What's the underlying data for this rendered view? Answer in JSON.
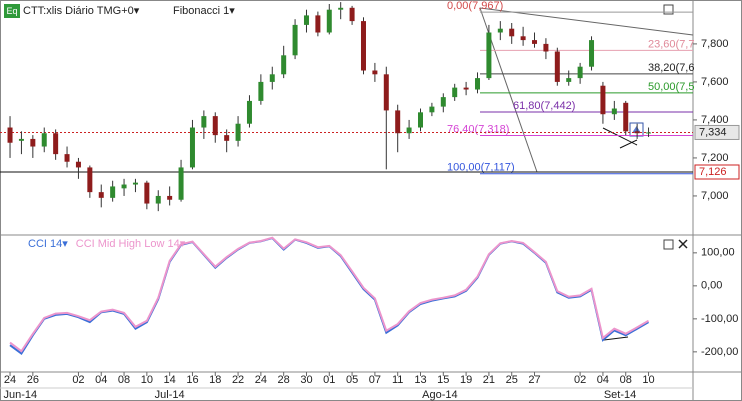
{
  "chart_data": [
    {
      "type": "candlestick",
      "badge": "Eq",
      "title": "CTT:xlis Diário TMG+0▾",
      "subtitle": "Fibonacci 1▾",
      "xlim": [
        -0.88,
        59.9
      ],
      "ylim": [
        6805,
        8031
      ],
      "yticks": [
        {
          "value": 7800,
          "label": "7,800"
        },
        {
          "value": 7600,
          "label": "7,600"
        },
        {
          "value": 7400,
          "label": "7,400"
        },
        {
          "value": 7200,
          "label": "7,200"
        },
        {
          "value": 7000,
          "label": "7,000"
        }
      ],
      "up_color": "#2f8a2f",
      "down_color": "#8e1c1c",
      "open": [
        7360,
        7290,
        7300,
        7260,
        7330,
        7220,
        7180,
        7150,
        7020,
        6990,
        7040,
        7060,
        7070,
        6960,
        7000,
        6980,
        7150,
        7360,
        7420,
        7320,
        7290,
        7380,
        7500,
        7600,
        7640,
        7740,
        7900,
        7950,
        7860,
        7980,
        7990,
        7920,
        7660,
        7640,
        7450,
        7330,
        7360,
        7440,
        7470,
        7520,
        7570,
        7560,
        7620,
        7860,
        7880,
        7840,
        7820,
        7800,
        7760,
        7600,
        7620,
        7680,
        7580,
        7430,
        7490,
        7340,
        7330
      ],
      "high": [
        7420,
        7340,
        7320,
        7360,
        7350,
        7260,
        7200,
        7160,
        7060,
        7080,
        7090,
        7090,
        7080,
        7030,
        7050,
        7190,
        7400,
        7450,
        7440,
        7350,
        7420,
        7530,
        7640,
        7680,
        7790,
        7930,
        7980,
        7970,
        8010,
        8020,
        8000,
        7940,
        7700,
        7680,
        7480,
        7400,
        7460,
        7490,
        7540,
        7590,
        7600,
        7650,
        7900,
        7920,
        7910,
        7890,
        7860,
        7830,
        7780,
        7660,
        7700,
        7840,
        7600,
        7500,
        7500,
        7380,
        7360
      ],
      "low": [
        7200,
        7220,
        7200,
        7230,
        7190,
        7150,
        7090,
        6990,
        6940,
        6970,
        7000,
        7020,
        6930,
        6920,
        6950,
        6970,
        7140,
        7300,
        7280,
        7230,
        7260,
        7360,
        7480,
        7560,
        7620,
        7720,
        7860,
        7840,
        7850,
        7930,
        7900,
        7640,
        7600,
        7140,
        7230,
        7300,
        7340,
        7420,
        7440,
        7500,
        7530,
        7540,
        7610,
        7820,
        7800,
        7790,
        7780,
        7720,
        7580,
        7580,
        7590,
        7660,
        7380,
        7400,
        7320,
        7300,
        7310
      ],
      "close": [
        7280,
        7300,
        7260,
        7330,
        7220,
        7180,
        7150,
        7020,
        6990,
        7050,
        7060,
        7070,
        6960,
        7000,
        6980,
        7150,
        7360,
        7420,
        7320,
        7290,
        7380,
        7500,
        7600,
        7640,
        7740,
        7900,
        7950,
        7860,
        7980,
        7990,
        7920,
        7660,
        7640,
        7450,
        7330,
        7360,
        7440,
        7470,
        7520,
        7570,
        7560,
        7620,
        7860,
        7880,
        7840,
        7820,
        7800,
        7760,
        7600,
        7620,
        7680,
        7820,
        7430,
        7460,
        7340,
        7330,
        7334
      ],
      "fibonacci_levels": [
        {
          "value": 7967,
          "label": "0,00(7,967)",
          "color": "#999999",
          "label_color": "#d24a4a"
        },
        {
          "value": 7766,
          "label": "23,60(7,7",
          "color": "#e6a0b0",
          "label_color": "#e08a9a"
        },
        {
          "value": 7642,
          "label": "38,20(7,6",
          "color": "#444444",
          "label_color": "#222222"
        },
        {
          "value": 7542,
          "label": "50,00(7,5",
          "color": "#2a9a2a",
          "label_color": "#2a9a2a"
        },
        {
          "value": 7442,
          "label": "61,80(7,442)",
          "color": "#7a2fa8",
          "label_color": "#7a2fa8"
        },
        {
          "value": 7318,
          "label": "76,40(7,318)",
          "color": "#d545d5",
          "label_color": "#d545d5"
        },
        {
          "value": 7117,
          "label": "100,00(7,117)",
          "color": "#3355dd",
          "label_color": "#3355dd"
        }
      ],
      "last_price": {
        "value": 7334,
        "label": "7,334",
        "color": "#cc2222"
      },
      "support_line": {
        "value": 7126,
        "label": "7,126",
        "color": "#111111",
        "label_color": "#cc2222"
      }
    },
    {
      "type": "line",
      "xlim": [
        -0.88,
        59.9
      ],
      "ylim": [
        -255,
        148
      ],
      "yticks": [
        {
          "value": 100,
          "label": "100,00"
        },
        {
          "value": 0,
          "label": "0,00"
        },
        {
          "value": -100,
          "label": "-100,00"
        },
        {
          "value": -200,
          "label": "-200,00"
        }
      ],
      "series": [
        {
          "name": "CCI 14▾",
          "color": "#3a6fd8",
          "values": [
            -180,
            -205,
            -150,
            -100,
            -88,
            -85,
            -95,
            -110,
            -80,
            -75,
            -85,
            -130,
            -110,
            -40,
            73,
            124,
            133,
            94,
            55,
            85,
            110,
            130,
            135,
            145,
            110,
            140,
            130,
            115,
            120,
            90,
            40,
            -10,
            -42,
            -142,
            -120,
            -80,
            -55,
            -45,
            -38,
            -32,
            -15,
            25,
            94,
            128,
            135,
            128,
            100,
            70,
            -20,
            -36,
            -32,
            -12,
            -164,
            -135,
            -150,
            -130,
            -110
          ]
        },
        {
          "name": "CCI Mid High Low 14▾",
          "color": "#ec95cc",
          "values": [
            -172,
            -198,
            -146,
            -97,
            -84,
            -82,
            -92,
            -104,
            -78,
            -72,
            -82,
            -124,
            -106,
            -36,
            76,
            126,
            134,
            96,
            58,
            87,
            112,
            131,
            136,
            146,
            113,
            141,
            132,
            117,
            121,
            93,
            44,
            -6,
            -38,
            -136,
            -116,
            -77,
            -52,
            -42,
            -36,
            -29,
            -12,
            28,
            96,
            129,
            136,
            130,
            102,
            73,
            -16,
            -33,
            -29,
            -9,
            -158,
            -130,
            -145,
            -126,
            -106
          ]
        }
      ],
      "xticks": [
        {
          "value": 0,
          "label": "24"
        },
        {
          "value": 2,
          "label": "26"
        },
        {
          "value": 6,
          "label": "02"
        },
        {
          "value": 8,
          "label": "04"
        },
        {
          "value": 10,
          "label": "08"
        },
        {
          "value": 12,
          "label": "10"
        },
        {
          "value": 14,
          "label": "14"
        },
        {
          "value": 16,
          "label": "16"
        },
        {
          "value": 18,
          "label": "18"
        },
        {
          "value": 20,
          "label": "22"
        },
        {
          "value": 22,
          "label": "24"
        },
        {
          "value": 24,
          "label": "28"
        },
        {
          "value": 26,
          "label": "30"
        },
        {
          "value": 28,
          "label": "01"
        },
        {
          "value": 30,
          "label": "05"
        },
        {
          "value": 32,
          "label": "07"
        },
        {
          "value": 34,
          "label": "11"
        },
        {
          "value": 36,
          "label": "13"
        },
        {
          "value": 38,
          "label": "15"
        },
        {
          "value": 40,
          "label": "19"
        },
        {
          "value": 42,
          "label": "21"
        },
        {
          "value": 44,
          "label": "25"
        },
        {
          "value": 46,
          "label": "27"
        },
        {
          "value": 50,
          "label": "02"
        },
        {
          "value": 52,
          "label": "04"
        },
        {
          "value": 54,
          "label": "08"
        },
        {
          "value": 56,
          "label": "10"
        }
      ],
      "month_ticks": [
        {
          "value": 0.9,
          "label": "Jun-14"
        },
        {
          "value": 14,
          "label": "Jul-14"
        },
        {
          "value": 37.7,
          "label": "Ago-14"
        },
        {
          "value": 53.5,
          "label": "Set-14"
        }
      ]
    }
  ]
}
